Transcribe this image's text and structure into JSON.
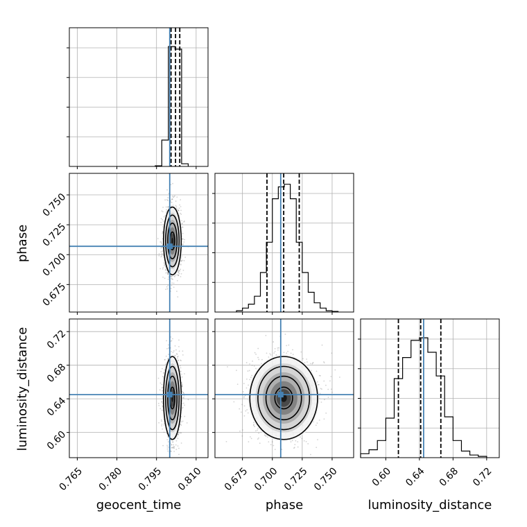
{
  "chart_data": {
    "type": "corner",
    "parameters": [
      "geocent_time",
      "phase",
      "luminosity_distance"
    ],
    "truths": {
      "geocent_time": 0.8,
      "phase": 0.707,
      "luminosity_distance": 0.645
    },
    "truth_color": "#4682b4",
    "grid": true,
    "axes": {
      "geocent_time": {
        "range": [
          0.762,
          0.8145
        ],
        "ticks": [
          "0.765",
          "0.780",
          "0.795",
          "0.810"
        ]
      },
      "phase": {
        "range": [
          0.652,
          0.768
        ],
        "ticks": [
          "0.675",
          "0.700",
          "0.725",
          "0.750"
        ]
      },
      "luminosity_distance": {
        "range": [
          0.57,
          0.735
        ],
        "ticks": [
          "0.60",
          "0.64",
          "0.68",
          "0.72"
        ]
      }
    },
    "histograms": {
      "geocent_time": {
        "bin_edges": [
          0.7945,
          0.797,
          0.7995,
          0.802,
          0.8045,
          0.807
        ],
        "counts": [
          0.005,
          0.2,
          0.91,
          0.89,
          0.02
        ],
        "quantiles": [
          0.8005,
          0.8022,
          0.8038
        ]
      },
      "phase": {
        "bin_edges": [
          0.67,
          0.675,
          0.68,
          0.685,
          0.69,
          0.695,
          0.7,
          0.705,
          0.71,
          0.715,
          0.72,
          0.725,
          0.73,
          0.735,
          0.74,
          0.745,
          0.75,
          0.755
        ],
        "counts": [
          0.01,
          0.03,
          0.06,
          0.12,
          0.3,
          0.53,
          0.86,
          0.95,
          0.97,
          0.86,
          0.53,
          0.3,
          0.15,
          0.07,
          0.03,
          0.01,
          0.005
        ],
        "quantiles": [
          0.6955,
          0.7095,
          0.7225
        ]
      },
      "luminosity_distance": {
        "bin_edges": [
          0.57,
          0.58,
          0.59,
          0.6,
          0.61,
          0.62,
          0.63,
          0.64,
          0.65,
          0.66,
          0.67,
          0.68,
          0.69,
          0.7,
          0.71,
          0.72
        ],
        "counts": [
          0.03,
          0.06,
          0.13,
          0.3,
          0.6,
          0.76,
          0.89,
          0.91,
          0.8,
          0.62,
          0.31,
          0.13,
          0.05,
          0.02,
          0.01
        ],
        "quantiles": [
          0.615,
          0.6415,
          0.6655
        ]
      }
    },
    "joint": [
      {
        "x": "geocent_time",
        "y": "phase",
        "center": [
          0.801,
          0.7115
        ],
        "sigma": [
          0.0016,
          0.0135
        ],
        "rho": 0.0
      },
      {
        "x": "geocent_time",
        "y": "luminosity_distance",
        "center": [
          0.801,
          0.641
        ],
        "sigma": [
          0.0016,
          0.0235
        ],
        "rho": 0.0
      },
      {
        "x": "phase",
        "y": "luminosity_distance",
        "center": [
          0.7095,
          0.641
        ],
        "sigma": [
          0.0135,
          0.0235
        ],
        "rho": 0.0
      }
    ]
  }
}
